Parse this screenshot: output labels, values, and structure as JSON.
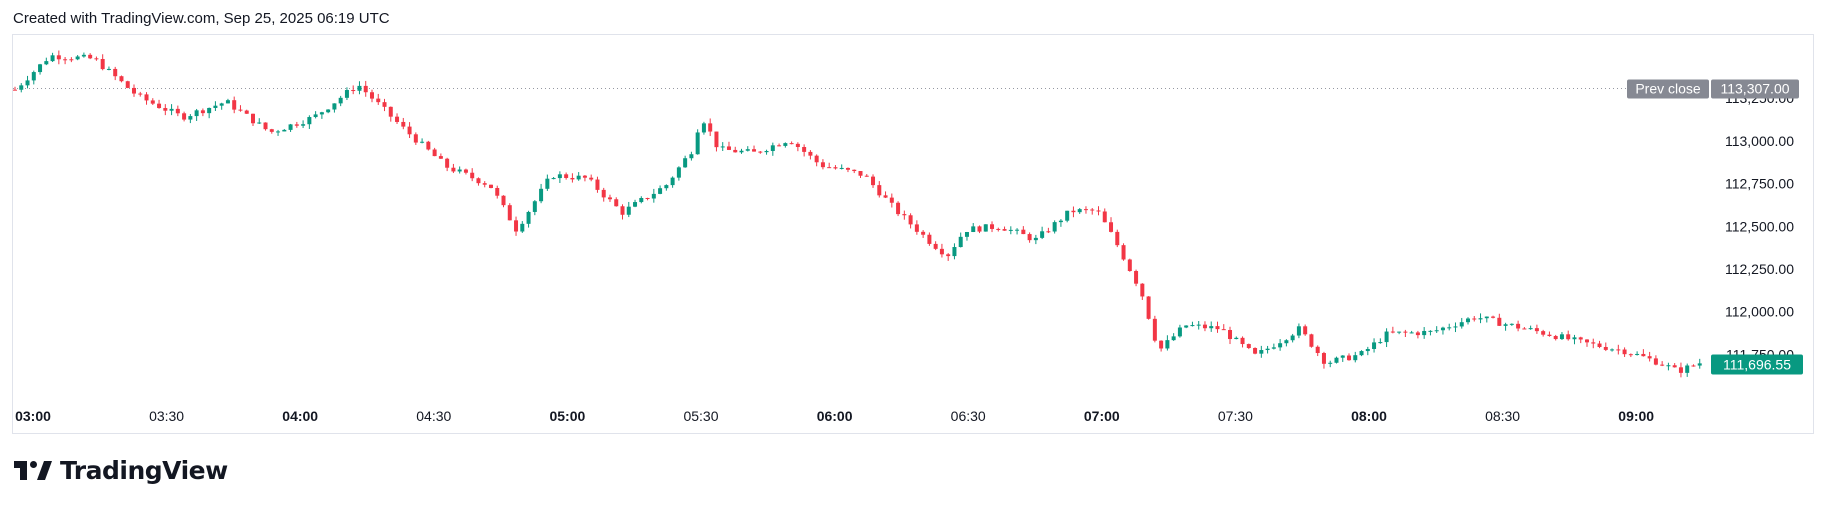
{
  "header": {
    "attribution": "Created with TradingView.com, Sep 25, 2025 06:19 UTC"
  },
  "brand": {
    "name": "TradingView",
    "icon": "tradingview-logo-icon"
  },
  "colors": {
    "up": "#089981",
    "down": "#f23645",
    "prev_close_badge": "#868993",
    "last_price_badge": "#089981",
    "axis_text": "#131722",
    "grid_border": "#e0e3eb"
  },
  "chart_data": {
    "type": "candlestick",
    "ylim": [
      111500,
      113550
    ],
    "x_range_minutes": [
      0,
      673
    ],
    "grid": false,
    "y_ticks": [
      "113,250.00",
      "113,000.00",
      "112,750.00",
      "112,500.00",
      "112,250.00",
      "112,000.00",
      "111,750.00"
    ],
    "y_tick_values": [
      113250,
      113000,
      112750,
      112500,
      112250,
      112000,
      111750
    ],
    "x_ticks": [
      {
        "label": "03:00",
        "minute": 0,
        "bold": true
      },
      {
        "label": "03:30",
        "minute": 30,
        "bold": false
      },
      {
        "label": "04:00",
        "minute": 60,
        "bold": true
      },
      {
        "label": "04:30",
        "minute": 90,
        "bold": false
      },
      {
        "label": "05:00",
        "minute": 120,
        "bold": true
      },
      {
        "label": "05:30",
        "minute": 150,
        "bold": false
      },
      {
        "label": "06:00",
        "minute": 180,
        "bold": true
      },
      {
        "label": "06:30",
        "minute": 210,
        "bold": false
      },
      {
        "label": "07:00",
        "minute": 240,
        "bold": true
      },
      {
        "label": "07:30",
        "minute": 270,
        "bold": false
      },
      {
        "label": "08:00",
        "minute": 300,
        "bold": true
      },
      {
        "label": "08:30",
        "minute": 330,
        "bold": false
      },
      {
        "label": "09:00",
        "minute": 360,
        "bold": true
      }
    ],
    "prev_close": {
      "label": "Prev close",
      "value": 113307,
      "value_label": "113,307.00"
    },
    "last_price": {
      "value": 111696.55,
      "value_label": "111,696.55"
    },
    "price_path": [
      [
        0,
        113300
      ],
      [
        8,
        113500
      ],
      [
        18,
        113480
      ],
      [
        28,
        113260
      ],
      [
        38,
        113140
      ],
      [
        48,
        113230
      ],
      [
        58,
        113050
      ],
      [
        68,
        113140
      ],
      [
        78,
        113330
      ],
      [
        88,
        113080
      ],
      [
        98,
        112850
      ],
      [
        108,
        112740
      ],
      [
        114,
        112480
      ],
      [
        122,
        112800
      ],
      [
        130,
        112780
      ],
      [
        138,
        112580
      ],
      [
        148,
        112740
      ],
      [
        154,
        112950
      ],
      [
        156,
        113150
      ],
      [
        160,
        112950
      ],
      [
        168,
        112930
      ],
      [
        176,
        113010
      ],
      [
        183,
        112860
      ],
      [
        193,
        112800
      ],
      [
        200,
        112600
      ],
      [
        208,
        112410
      ],
      [
        212,
        112330
      ],
      [
        216,
        112480
      ],
      [
        224,
        112500
      ],
      [
        232,
        112420
      ],
      [
        240,
        112590
      ],
      [
        246,
        112590
      ],
      [
        250,
        112420
      ],
      [
        256,
        112120
      ],
      [
        260,
        111770
      ],
      [
        266,
        111920
      ],
      [
        274,
        111900
      ],
      [
        282,
        111740
      ],
      [
        292,
        111900
      ],
      [
        298,
        111700
      ],
      [
        306,
        111750
      ],
      [
        312,
        111870
      ],
      [
        322,
        111880
      ],
      [
        332,
        111970
      ],
      [
        340,
        111920
      ],
      [
        350,
        111860
      ],
      [
        356,
        111820
      ],
      [
        366,
        111770
      ],
      [
        374,
        111700
      ],
      [
        378,
        111650
      ],
      [
        383,
        111700
      ]
    ]
  }
}
